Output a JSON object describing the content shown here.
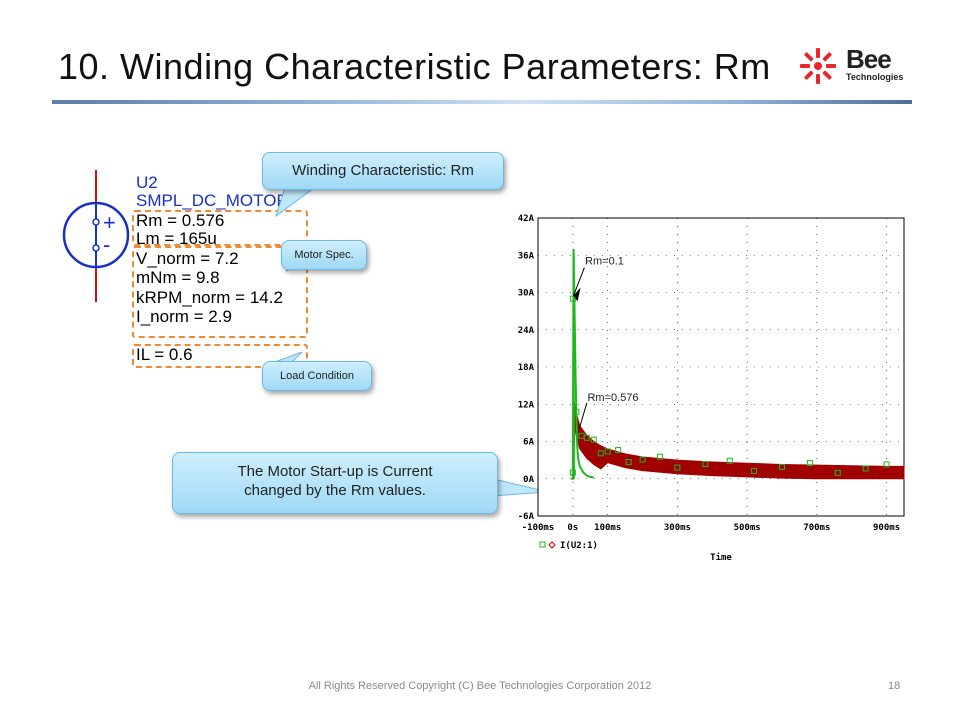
{
  "title": "10. Winding Characteristic Parameters: Rm",
  "logo": {
    "word": "Bee",
    "sub": "Technologies"
  },
  "component": {
    "ref": "U2",
    "model": "SMPL_DC_MOTOR",
    "params": [
      "Rm = 0.576",
      "Lm = 165u",
      "V_norm = 7.2",
      "mNm = 9.8",
      "kRPM_norm = 14.2",
      "I_norm = 2.9"
    ],
    "load": "IL = 0.6",
    "plus": "+",
    "minus": "-"
  },
  "callouts": {
    "winding": "Winding Characteristic: Rm",
    "motor_spec": "Motor Spec.",
    "load_condition": "Load Condition",
    "startup_line1": "The Motor Start-up is Current",
    "startup_line2": "changed by the Rm values."
  },
  "chart_data": {
    "type": "line",
    "xlabel": "Time",
    "x_ticks": [
      "-100ms",
      "0s",
      "100ms",
      "300ms",
      "500ms",
      "700ms",
      "900ms"
    ],
    "y_ticks": [
      "42A",
      "36A",
      "30A",
      "24A",
      "18A",
      "12A",
      "6A",
      "0A",
      "-6A"
    ],
    "xlim": [
      -100,
      950
    ],
    "ylim": [
      -6,
      42
    ],
    "legend": "I(U2:1)",
    "annotations": [
      "Rm=0.1",
      "Rm=0.576"
    ],
    "series": [
      {
        "x": [
          -5,
          0,
          2,
          4,
          6,
          8,
          10,
          12,
          14,
          16,
          20,
          25,
          30,
          40,
          50,
          60
        ],
        "values": [
          0,
          0,
          37,
          30,
          23,
          16,
          10,
          6,
          4,
          3,
          2,
          1.5,
          1,
          0.5,
          0.3,
          0.2
        ]
      },
      {
        "x": [
          0,
          2,
          5,
          10,
          20,
          40,
          60,
          80,
          100,
          150,
          200,
          300,
          400,
          500,
          600,
          700,
          800,
          900,
          950
        ],
        "values": [
          0,
          13,
          12,
          10.5,
          8.5,
          7,
          6,
          5.3,
          4.8,
          4,
          3.5,
          3,
          2.7,
          2.5,
          2.3,
          2.2,
          2.1,
          2,
          2
        ]
      }
    ],
    "colors": {
      "rm01": "#1cb81c",
      "rm0576": "#a00000",
      "grid": "#000000",
      "axis_text": "#000000"
    }
  },
  "footer": "All Rights Reserved Copyright (C) Bee Technologies Corporation 2012",
  "page_number": "18"
}
